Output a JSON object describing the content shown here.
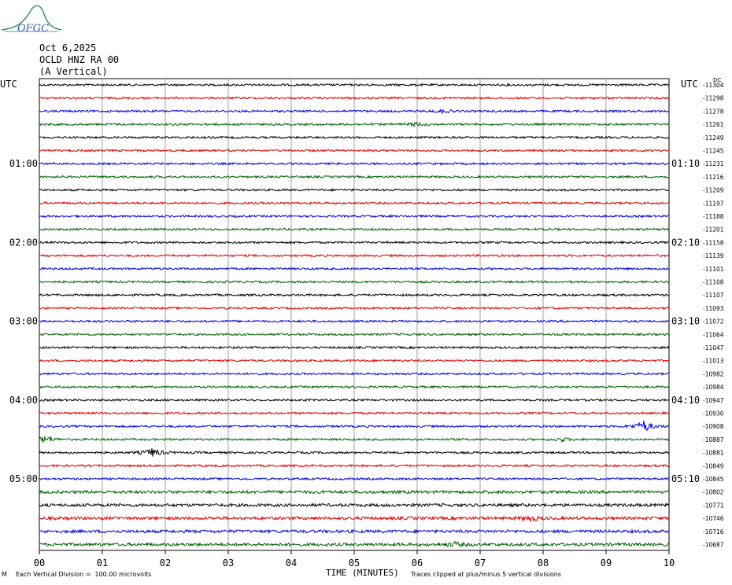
{
  "header": {
    "logo_text": "OFGC",
    "date": "Oct 6,2025",
    "station": "OCLD HNZ RA 00",
    "component": "(A Vertical)"
  },
  "left_axis_label": "UTC",
  "right_axis_label": "UTC",
  "right_unit_label": "DC",
  "footer": {
    "left_marker": "M",
    "scale_note": "Each Vertical Division =  100.00 microvolts",
    "clip_note": "Traces clipped at plus/minus 5 vertical divisions"
  },
  "colors": {
    "trace_cycle": [
      "#000000",
      "#e00000",
      "#0000e0",
      "#006000"
    ],
    "grid": "#888888"
  },
  "chart_data": {
    "type": "line",
    "title": "OCLD HNZ RA 00",
    "xlabel": "TIME (MINUTES)",
    "ylabel": "UTC",
    "xlim": [
      0,
      10
    ],
    "x_ticks": [
      "00",
      "01",
      "02",
      "03",
      "04",
      "05",
      "06",
      "07",
      "08",
      "09",
      "10"
    ],
    "left_hour_labels": [
      {
        "row": 6,
        "label": "01:00"
      },
      {
        "row": 12,
        "label": "02:00"
      },
      {
        "row": 18,
        "label": "03:00"
      },
      {
        "row": 24,
        "label": "04:00"
      },
      {
        "row": 30,
        "label": "05:00"
      }
    ],
    "right_hour_labels": [
      {
        "row": 6,
        "label": "01:10"
      },
      {
        "row": 12,
        "label": "02:10"
      },
      {
        "row": 18,
        "label": "03:10"
      },
      {
        "row": 24,
        "label": "04:10"
      },
      {
        "row": 30,
        "label": "05:10"
      }
    ],
    "dc_offsets": [
      "-11304",
      "-11298",
      "-11278",
      "-11261",
      "-11249",
      "-11245",
      "-11231",
      "-11216",
      "-11209",
      "-11197",
      "-11188",
      "-11201",
      "-11158",
      "-11139",
      "-11101",
      "-11108",
      "-11107",
      "-11093",
      "-11072",
      "-11064",
      "-11047",
      "-11013",
      "-10982",
      "-10984",
      "-10947",
      "-10930",
      "-10908",
      "-10887",
      "-10881",
      "-10849",
      "-10845",
      "-10802",
      "-10771",
      "-10746",
      "-10716",
      "-10687"
    ],
    "trace_count": 36,
    "minutes_per_trace": 10,
    "events": [
      {
        "row": 2,
        "minute": 6.4,
        "amp": 1.5
      },
      {
        "row": 3,
        "minute": 6.0,
        "amp": 2.0
      },
      {
        "row": 26,
        "minute": 9.6,
        "amp": 7.0
      },
      {
        "row": 27,
        "minute": 0.1,
        "amp": 4.0
      },
      {
        "row": 27,
        "minute": 8.3,
        "amp": 2.0
      },
      {
        "row": 28,
        "minute": 1.8,
        "amp": 5.0
      },
      {
        "row": 33,
        "minute": 7.8,
        "amp": 2.5
      },
      {
        "row": 35,
        "minute": 6.6,
        "amp": 2.5
      }
    ]
  }
}
